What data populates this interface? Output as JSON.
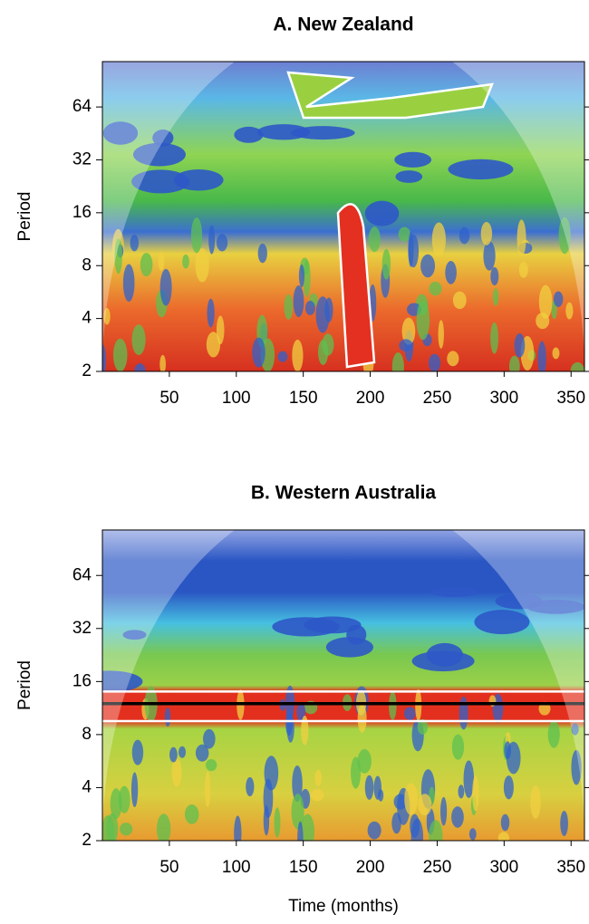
{
  "chart_data": [
    {
      "type": "wavelet",
      "title": "A. New Zealand",
      "y_label": "Period",
      "xlim": [
        0,
        360
      ],
      "xticks": [
        50,
        100,
        150,
        200,
        250,
        300,
        350
      ],
      "ylim": [
        2,
        116
      ],
      "yticks": [
        2,
        4,
        8,
        16,
        32,
        64
      ],
      "y_scale": "log2"
    },
    {
      "type": "wavelet",
      "title": "B. Western Australia",
      "y_label": "Period",
      "x_label": "Time (months)",
      "xlim": [
        0,
        360
      ],
      "xticks": [
        50,
        100,
        150,
        200,
        250,
        300,
        350
      ],
      "ylim": [
        2,
        116
      ],
      "yticks": [
        2,
        4,
        8,
        16,
        32,
        64
      ],
      "y_scale": "log2"
    }
  ]
}
